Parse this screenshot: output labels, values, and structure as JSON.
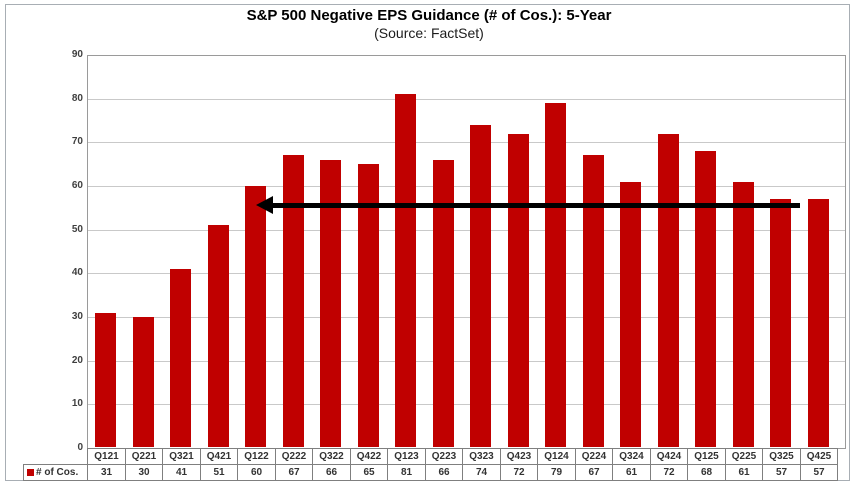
{
  "chart_data": {
    "type": "bar",
    "title": "S&P 500 Negative EPS Guidance (# of Cos.): 5-Year",
    "subtitle": "(Source: FactSet)",
    "series_name": "# of Cos.",
    "categories": [
      "Q121",
      "Q221",
      "Q321",
      "Q421",
      "Q122",
      "Q222",
      "Q322",
      "Q422",
      "Q123",
      "Q223",
      "Q323",
      "Q423",
      "Q124",
      "Q224",
      "Q324",
      "Q424",
      "Q125",
      "Q225",
      "Q325",
      "Q425"
    ],
    "values": [
      31,
      30,
      41,
      51,
      60,
      67,
      66,
      65,
      81,
      66,
      74,
      72,
      79,
      67,
      61,
      72,
      68,
      61,
      57,
      57
    ],
    "xlabel": "",
    "ylabel": "",
    "ylim": [
      0,
      90
    ],
    "ytick_interval": 10,
    "grid": true,
    "legend_position": "bottom-left",
    "bar_color": "#c00000",
    "grid_color": "#c9c9c9",
    "annotation": {
      "type": "arrow",
      "direction": "left",
      "color": "#000000",
      "from_category": "Q425",
      "to_category": "Q122",
      "at_value": 55.7
    }
  }
}
